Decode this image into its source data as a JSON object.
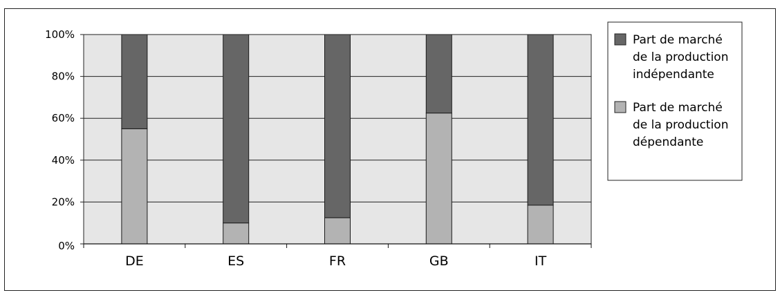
{
  "chart_data": {
    "type": "bar",
    "stacked": true,
    "percent": true,
    "categories": [
      "DE",
      "ES",
      "FR",
      "GB",
      "IT"
    ],
    "series": [
      {
        "name": "Part de marché de la production dépendante",
        "name_lines": [
          "Part de marché",
          "de la production",
          "dépendante"
        ],
        "values": [
          55,
          10,
          12.5,
          62.5,
          18.5
        ],
        "color": "#b3b3b3"
      },
      {
        "name": "Part de marché de la production indépendante",
        "name_lines": [
          "Part de marché",
          "de la production",
          "indépendante"
        ],
        "values": [
          45,
          90,
          87.5,
          37.5,
          81.5
        ],
        "color": "#666666"
      }
    ],
    "y_ticks": [
      "0%",
      "20%",
      "40%",
      "60%",
      "80%",
      "100%"
    ],
    "ylim": [
      0,
      100
    ],
    "grid": true,
    "plot_background": "#e6e6e6",
    "legend_position": "right",
    "legend_order": [
      1,
      0
    ]
  }
}
